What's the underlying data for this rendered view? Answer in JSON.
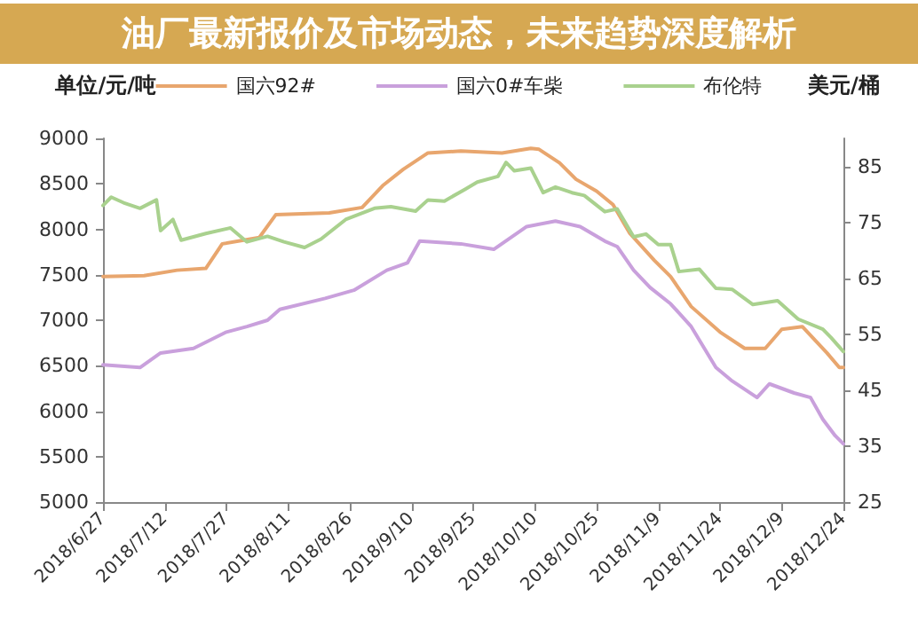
{
  "chart_data": {
    "type": "line",
    "title": "油厂最新报价及市场动态，未来趋势深度解析",
    "ylabel": "单位/元/吨",
    "y2label": "美元/桶",
    "xlim": [
      "2018-06-27",
      "2018-12-24"
    ],
    "xticks": [
      {
        "value": "2018-06-27",
        "label": "2018/6/27"
      },
      {
        "value": "2018-07-12",
        "label": "2018/7/12"
      },
      {
        "value": "2018-07-27",
        "label": "2018/7/27"
      },
      {
        "value": "2018-08-11",
        "label": "2018/8/11"
      },
      {
        "value": "2018-08-26",
        "label": "2018/8/26"
      },
      {
        "value": "2018-09-10",
        "label": "2018/9/10"
      },
      {
        "value": "2018-09-25",
        "label": "2018/9/25"
      },
      {
        "value": "2018-10-10",
        "label": "2018/10/10"
      },
      {
        "value": "2018-10-25",
        "label": "2018/10/25"
      },
      {
        "value": "2018-11-09",
        "label": "2018/11/9"
      },
      {
        "value": "2018-11-24",
        "label": "2018/11/24"
      },
      {
        "value": "2018-12-09",
        "label": "2018/12/9"
      },
      {
        "value": "2018-12-24",
        "label": "2018/12/24"
      }
    ],
    "ylim": [
      5000,
      9000
    ],
    "yticks": [
      5000,
      5500,
      6000,
      6500,
      7000,
      7500,
      8000,
      8500,
      9000
    ],
    "y2lim": [
      25,
      90
    ],
    "y2ticks": [
      25,
      35,
      45,
      55,
      65,
      75,
      85
    ],
    "grid": false,
    "legend": "top",
    "marker": "none",
    "line_style": "solid",
    "series": [
      {
        "name": "国六92#",
        "color": "#e8a66e",
        "x": [
          "2018-06-27",
          "2018-07-07",
          "2018-07-15",
          "2018-07-22",
          "2018-07-26",
          "2018-08-04",
          "2018-08-08",
          "2018-08-21",
          "2018-08-29",
          "2018-09-03",
          "2018-09-08",
          "2018-09-14",
          "2018-09-22",
          "2018-10-02",
          "2018-10-09",
          "2018-10-11",
          "2018-10-16",
          "2018-10-20",
          "2018-10-25",
          "2018-10-29",
          "2018-11-02",
          "2018-11-08",
          "2018-11-12",
          "2018-11-17",
          "2018-11-24",
          "2018-11-30",
          "2018-12-05",
          "2018-12-09",
          "2018-12-14",
          "2018-12-20",
          "2018-12-23",
          "2018-12-24"
        ],
        "values": [
          7480,
          7490,
          7550,
          7570,
          7840,
          7910,
          8160,
          8180,
          8240,
          8480,
          8660,
          8840,
          8860,
          8840,
          8890,
          8880,
          8730,
          8550,
          8420,
          8270,
          7960,
          7660,
          7480,
          7150,
          6870,
          6690,
          6690,
          6900,
          6930,
          6640,
          6480,
          6480
        ]
      },
      {
        "name": "国六0#车柴",
        "color": "#c9a0dc",
        "x": [
          "2018-06-27",
          "2018-07-06",
          "2018-07-11",
          "2018-07-19",
          "2018-07-27",
          "2018-08-01",
          "2018-08-06",
          "2018-08-09",
          "2018-08-20",
          "2018-08-27",
          "2018-09-04",
          "2018-09-09",
          "2018-09-12",
          "2018-09-22",
          "2018-09-30",
          "2018-10-08",
          "2018-10-15",
          "2018-10-21",
          "2018-10-27",
          "2018-10-30",
          "2018-11-03",
          "2018-11-07",
          "2018-11-12",
          "2018-11-17",
          "2018-11-23",
          "2018-11-27",
          "2018-12-03",
          "2018-12-06",
          "2018-12-12",
          "2018-12-16",
          "2018-12-19",
          "2018-12-22",
          "2018-12-24"
        ],
        "values": [
          6510,
          6480,
          6640,
          6690,
          6870,
          6930,
          7000,
          7120,
          7240,
          7330,
          7550,
          7630,
          7870,
          7840,
          7780,
          8030,
          8090,
          8030,
          7870,
          7810,
          7550,
          7360,
          7180,
          6930,
          6480,
          6330,
          6150,
          6300,
          6200,
          6150,
          5910,
          5730,
          5640
        ]
      },
      {
        "name": "布伦特",
        "color": "#a9d18e",
        "axis": "y2",
        "x": [
          "2018-06-27",
          "2018-06-29",
          "2018-07-02",
          "2018-07-06",
          "2018-07-10",
          "2018-07-11",
          "2018-07-14",
          "2018-07-16",
          "2018-07-22",
          "2018-07-28",
          "2018-08-01",
          "2018-08-06",
          "2018-08-10",
          "2018-08-15",
          "2018-08-19",
          "2018-08-25",
          "2018-09-01",
          "2018-09-05",
          "2018-09-11",
          "2018-09-14",
          "2018-09-18",
          "2018-09-23",
          "2018-09-26",
          "2018-10-01",
          "2018-10-03",
          "2018-10-05",
          "2018-10-09",
          "2018-10-12",
          "2018-10-15",
          "2018-10-19",
          "2018-10-22",
          "2018-10-27",
          "2018-10-30",
          "2018-11-03",
          "2018-11-06",
          "2018-11-09",
          "2018-11-12",
          "2018-11-14",
          "2018-11-19",
          "2018-11-23",
          "2018-11-27",
          "2018-12-02",
          "2018-12-08",
          "2018-12-13",
          "2018-12-19",
          "2018-12-21",
          "2018-12-24"
        ],
        "values": [
          78.0,
          79.5,
          78.5,
          77.5,
          79.0,
          73.5,
          75.5,
          71.8,
          73.0,
          74.0,
          71.5,
          72.5,
          71.5,
          70.5,
          72.0,
          75.5,
          77.5,
          77.8,
          77.0,
          79.0,
          78.8,
          80.9,
          82.2,
          83.2,
          85.7,
          84.2,
          84.7,
          80.3,
          81.3,
          80.3,
          79.8,
          76.9,
          77.4,
          72.4,
          72.9,
          71.0,
          71.0,
          66.2,
          66.6,
          63.2,
          63.0,
          60.3,
          61.0,
          57.7,
          55.9,
          54.4,
          51.9
        ]
      }
    ]
  }
}
